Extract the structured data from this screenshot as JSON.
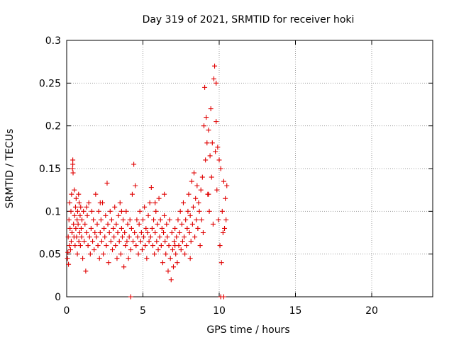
{
  "chart_data": {
    "type": "scatter",
    "title": "Day 319 of 2021, SRMTID for receiver hoki",
    "xlabel": "GPS time / hours",
    "ylabel": "SRMTID / TECUs",
    "xlim": [
      0,
      24
    ],
    "ylim": [
      0,
      0.3
    ],
    "xticks": [
      0,
      5,
      10,
      15,
      20
    ],
    "xtick_labels": [
      "0",
      "5",
      "10",
      "15",
      "20"
    ],
    "yticks": [
      0,
      0.05,
      0.1,
      0.15,
      0.2,
      0.25,
      0.3
    ],
    "ytick_labels": [
      "0",
      "0.05",
      "0.1",
      "0.15",
      "0.2",
      "0.25",
      "0.3"
    ],
    "grid": true,
    "marker_color": "#e00000",
    "marker": "plus",
    "series": [
      {
        "name": "SRMTID",
        "points": [
          [
            0.05,
            0.045
          ],
          [
            0.08,
            0.052
          ],
          [
            0.1,
            0.07
          ],
          [
            0.12,
            0.038
          ],
          [
            0.15,
            0.09
          ],
          [
            0.18,
            0.06
          ],
          [
            0.2,
            0.11
          ],
          [
            0.22,
            0.08
          ],
          [
            0.25,
            0.055
          ],
          [
            0.28,
            0.1
          ],
          [
            0.3,
            0.065
          ],
          [
            0.32,
            0.12
          ],
          [
            0.35,
            0.075
          ],
          [
            0.38,
            0.15
          ],
          [
            0.4,
            0.16
          ],
          [
            0.42,
            0.145
          ],
          [
            0.45,
            0.085
          ],
          [
            0.48,
            0.07
          ],
          [
            0.5,
            0.125
          ],
          [
            0.52,
            0.095
          ],
          [
            0.55,
            0.06
          ],
          [
            0.58,
            0.105
          ],
          [
            0.6,
            0.08
          ],
          [
            0.62,
            0.115
          ],
          [
            0.65,
            0.07
          ],
          [
            0.68,
            0.09
          ],
          [
            0.7,
            0.05
          ],
          [
            0.72,
            0.1
          ],
          [
            0.75,
            0.085
          ],
          [
            0.78,
            0.12
          ],
          [
            0.8,
            0.065
          ],
          [
            0.82,
            0.11
          ],
          [
            0.85,
            0.075
          ],
          [
            0.88,
            0.095
          ],
          [
            0.9,
            0.06
          ],
          [
            0.92,
            0.105
          ],
          [
            0.95,
            0.08
          ],
          [
            0.98,
            0.07
          ],
          [
            1.0,
            0.09
          ],
          [
            1.05,
            0.045
          ],
          [
            1.1,
            0.1
          ],
          [
            1.15,
            0.065
          ],
          [
            1.2,
            0.085
          ],
          [
            1.25,
            0.03
          ],
          [
            1.3,
            0.075
          ],
          [
            1.35,
            0.095
          ],
          [
            1.4,
            0.06
          ],
          [
            1.45,
            0.11
          ],
          [
            1.5,
            0.07
          ],
          [
            1.55,
            0.05
          ],
          [
            1.6,
            0.08
          ],
          [
            1.65,
            0.1
          ],
          [
            1.7,
            0.065
          ],
          [
            1.75,
            0.09
          ],
          [
            1.8,
            0.055
          ],
          [
            1.85,
            0.075
          ],
          [
            1.9,
            0.12
          ],
          [
            1.95,
            0.07
          ],
          [
            2.0,
            0.085
          ],
          [
            2.05,
            0.06
          ],
          [
            2.1,
            0.1
          ],
          [
            2.15,
            0.045
          ],
          [
            2.2,
            0.075
          ],
          [
            2.25,
            0.09
          ],
          [
            2.3,
            0.065
          ],
          [
            2.35,
            0.11
          ],
          [
            2.4,
            0.05
          ],
          [
            2.45,
            0.08
          ],
          [
            2.5,
            0.07
          ],
          [
            2.55,
            0.095
          ],
          [
            2.6,
            0.06
          ],
          [
            2.65,
            0.133
          ],
          [
            2.7,
            0.085
          ],
          [
            2.75,
            0.04
          ],
          [
            2.8,
            0.075
          ],
          [
            2.85,
            0.1
          ],
          [
            2.9,
            0.065
          ],
          [
            2.95,
            0.09
          ],
          [
            3.0,
            0.055
          ],
          [
            3.05,
            0.08
          ],
          [
            3.1,
            0.07
          ],
          [
            3.15,
            0.105
          ],
          [
            3.2,
            0.06
          ],
          [
            3.25,
            0.085
          ],
          [
            3.3,
            0.045
          ],
          [
            3.35,
            0.075
          ],
          [
            3.4,
            0.095
          ],
          [
            3.45,
            0.065
          ],
          [
            3.5,
            0.11
          ],
          [
            3.55,
            0.05
          ],
          [
            3.6,
            0.08
          ],
          [
            3.65,
            0.07
          ],
          [
            3.7,
            0.09
          ],
          [
            3.75,
            0.035
          ],
          [
            3.8,
            0.075
          ],
          [
            3.85,
            0.06
          ],
          [
            3.9,
            0.1
          ],
          [
            3.95,
            0.065
          ],
          [
            4.0,
            0.085
          ],
          [
            4.05,
            0.045
          ],
          [
            4.1,
            0.07
          ],
          [
            4.15,
            0.09
          ],
          [
            4.2,
            0.055
          ],
          [
            4.25,
            0.08
          ],
          [
            4.3,
            0.12
          ],
          [
            4.35,
            0.065
          ],
          [
            4.4,
            0.155
          ],
          [
            4.45,
            0.075
          ],
          [
            4.5,
            0.13
          ],
          [
            4.55,
            0.06
          ],
          [
            4.6,
            0.09
          ],
          [
            4.65,
            0.07
          ],
          [
            4.7,
            0.05
          ],
          [
            4.75,
            0.085
          ],
          [
            4.8,
            0.1
          ],
          [
            4.85,
            0.065
          ],
          [
            4.9,
            0.075
          ],
          [
            4.95,
            0.055
          ],
          [
            5.0,
            0.09
          ],
          [
            5.05,
            0.07
          ],
          [
            5.1,
            0.105
          ],
          [
            5.15,
            0.06
          ],
          [
            5.2,
            0.08
          ],
          [
            5.25,
            0.045
          ],
          [
            5.3,
            0.075
          ],
          [
            5.35,
            0.095
          ],
          [
            5.4,
            0.065
          ],
          [
            5.45,
            0.11
          ],
          [
            5.5,
            0.07
          ],
          [
            5.55,
            0.128
          ],
          [
            5.6,
            0.08
          ],
          [
            5.65,
            0.06
          ],
          [
            5.7,
            0.09
          ],
          [
            5.75,
            0.05
          ],
          [
            5.8,
            0.075
          ],
          [
            5.85,
            0.1
          ],
          [
            5.9,
            0.065
          ],
          [
            5.95,
            0.085
          ],
          [
            6.0,
            0.055
          ],
          [
            6.05,
            0.115
          ],
          [
            6.1,
            0.07
          ],
          [
            6.15,
            0.09
          ],
          [
            6.2,
            0.06
          ],
          [
            6.25,
            0.08
          ],
          [
            6.3,
            0.04
          ],
          [
            6.35,
            0.075
          ],
          [
            6.4,
            0.095
          ],
          [
            6.45,
            0.065
          ],
          [
            6.5,
            0.05
          ],
          [
            6.55,
            0.085
          ],
          [
            6.6,
            0.07
          ],
          [
            6.65,
            0.03
          ],
          [
            6.7,
            0.06
          ],
          [
            6.75,
            0.09
          ],
          [
            6.8,
            0.045
          ],
          [
            6.85,
            0.02
          ],
          [
            6.9,
            0.075
          ],
          [
            6.95,
            0.055
          ],
          [
            7.0,
            0.035
          ],
          [
            7.05,
            0.065
          ],
          [
            7.1,
            0.08
          ],
          [
            7.15,
            0.05
          ],
          [
            7.2,
            0.07
          ],
          [
            7.25,
            0.04
          ],
          [
            7.3,
            0.09
          ],
          [
            7.35,
            0.06
          ],
          [
            7.4,
            0.075
          ],
          [
            7.45,
            0.1
          ],
          [
            7.5,
            0.055
          ],
          [
            7.55,
            0.085
          ],
          [
            7.6,
            0.065
          ],
          [
            7.65,
            0.11
          ],
          [
            7.7,
            0.07
          ],
          [
            7.75,
            0.05
          ],
          [
            7.8,
            0.09
          ],
          [
            7.85,
            0.06
          ],
          [
            7.9,
            0.08
          ],
          [
            7.95,
            0.1
          ],
          [
            8.0,
            0.12
          ],
          [
            8.05,
            0.075
          ],
          [
            8.1,
            0.095
          ],
          [
            8.15,
            0.065
          ],
          [
            8.2,
            0.135
          ],
          [
            8.25,
            0.085
          ],
          [
            8.3,
            0.105
          ],
          [
            8.35,
            0.145
          ],
          [
            8.4,
            0.07
          ],
          [
            8.45,
            0.115
          ],
          [
            8.5,
            0.09
          ],
          [
            8.55,
            0.13
          ],
          [
            8.6,
            0.08
          ],
          [
            8.65,
            0.11
          ],
          [
            8.7,
            0.1
          ],
          [
            8.75,
            0.06
          ],
          [
            8.8,
            0.125
          ],
          [
            8.85,
            0.09
          ],
          [
            8.9,
            0.14
          ],
          [
            8.95,
            0.075
          ],
          [
            9.0,
            0.2
          ],
          [
            9.05,
            0.245
          ],
          [
            9.1,
            0.16
          ],
          [
            9.15,
            0.21
          ],
          [
            9.2,
            0.18
          ],
          [
            9.25,
            0.12
          ],
          [
            9.3,
            0.195
          ],
          [
            9.35,
            0.1
          ],
          [
            9.4,
            0.165
          ],
          [
            9.45,
            0.22
          ],
          [
            9.5,
            0.14
          ],
          [
            9.55,
            0.18
          ],
          [
            9.6,
            0.085
          ],
          [
            9.65,
            0.255
          ],
          [
            9.7,
            0.27
          ],
          [
            9.75,
            0.17
          ],
          [
            9.8,
            0.205
          ],
          [
            9.85,
            0.125
          ],
          [
            9.9,
            0.175
          ],
          [
            9.95,
            0.09
          ],
          [
            10.0,
            0.16
          ],
          [
            10.05,
            0.06
          ],
          [
            10.1,
            0.15
          ],
          [
            10.15,
            0.04
          ],
          [
            10.2,
            0.1
          ],
          [
            10.25,
            0.075
          ],
          [
            10.3,
            0.135
          ],
          [
            10.35,
            0.08
          ],
          [
            10.4,
            0.115
          ],
          [
            10.45,
            0.09
          ],
          [
            10.5,
            0.13
          ],
          [
            0.4,
            0.155
          ],
          [
            1.3,
            0.105
          ],
          [
            2.2,
            0.11
          ],
          [
            3.6,
            0.1
          ],
          [
            5.8,
            0.11
          ],
          [
            6.4,
            0.12
          ],
          [
            7.1,
            0.06
          ],
          [
            8.1,
            0.045
          ],
          [
            9.3,
            0.12
          ],
          [
            9.8,
            0.25
          ],
          [
            4.2,
            0.0
          ],
          [
            10.1,
            0.0
          ],
          [
            10.3,
            0.0
          ]
        ]
      }
    ]
  }
}
